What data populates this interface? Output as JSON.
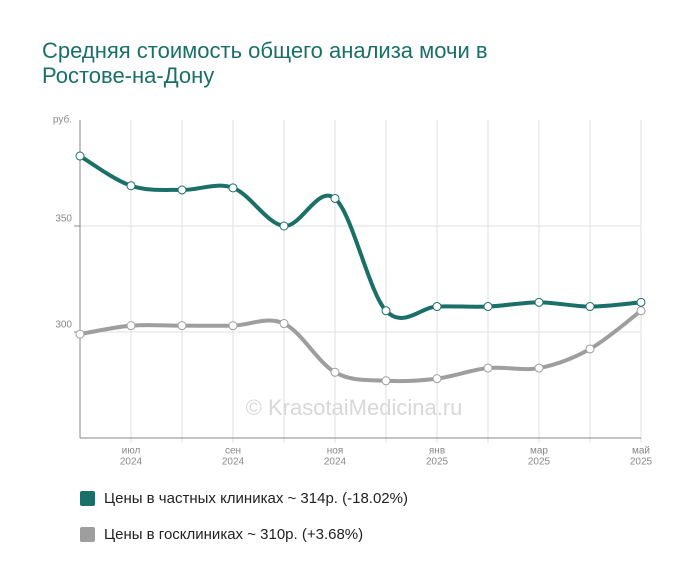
{
  "chart_data": {
    "type": "line",
    "title": [
      "Средняя стоимость общего анализа мочи в",
      "Ростове-на-Дону"
    ],
    "y_label": "руб.",
    "watermark": "© KrasotaiMedicina.ru",
    "categories": [
      null,
      [
        "июл",
        "2024"
      ],
      null,
      [
        "сен",
        "2024"
      ],
      null,
      [
        "ноя",
        "2024"
      ],
      null,
      [
        "янв",
        "2025"
      ],
      null,
      [
        "мар",
        "2025"
      ],
      null,
      [
        "май",
        "2025"
      ]
    ],
    "series": [
      {
        "name": "Цены в частных клиниках ~ 314р. (-18.02%)",
        "color": "#1a7068",
        "values": [
          383,
          369,
          367,
          368,
          350,
          363,
          310,
          312,
          312,
          314,
          312,
          314
        ]
      },
      {
        "name": "Цены в госклиниках ~ 310р. (+3.68%)",
        "color": "#9e9e9e",
        "values": [
          299,
          303,
          303,
          303,
          304,
          281,
          277,
          278,
          283,
          283,
          292,
          310
        ]
      }
    ],
    "ylim": [
      250,
      400
    ],
    "yticks": [
      300,
      350
    ],
    "grid": true
  }
}
